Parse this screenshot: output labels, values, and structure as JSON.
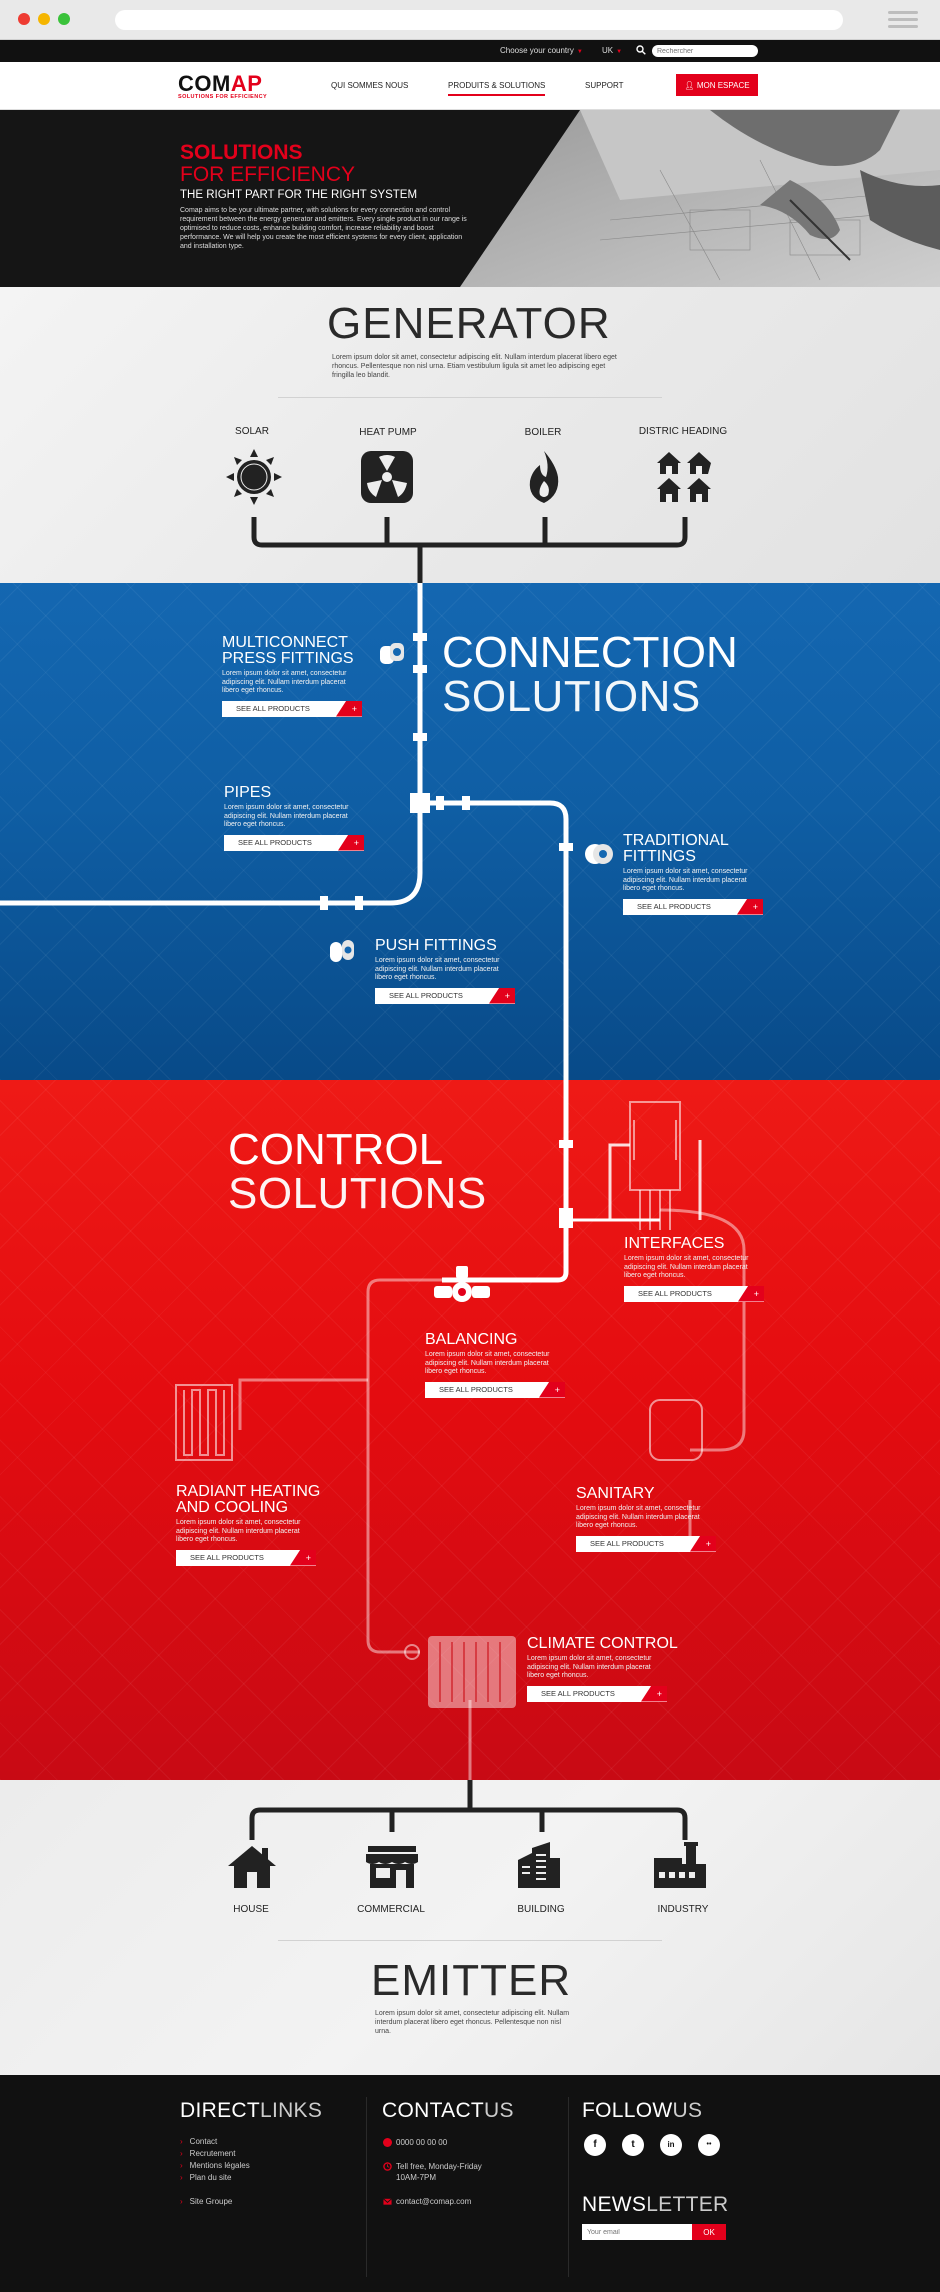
{
  "topbar": {
    "country_label": "Choose your country",
    "lang": "UK",
    "search_placeholder": "Rechercher"
  },
  "nav": {
    "logo_word_a": "COM",
    "logo_word_b": "AP",
    "logo_tagline": "SOLUTIONS FOR EFFICIENCY",
    "items": [
      "QUI SOMMES NOUS",
      "PRODUITS & SOLUTIONS",
      "SUPPORT"
    ],
    "active_item": "PRODUITS & SOLUTIONS",
    "espace_label": "MON ESPACE"
  },
  "hero": {
    "title_bold": "SOLUTIONS",
    "title_light": "FOR EFFICIENCY",
    "subtitle": "THE RIGHT PART FOR THE RIGHT SYSTEM",
    "text": "Comap aims to be your ultimate partner, with solutions for every connection and control requirement between the energy generator and emitters. Every single product in our range is optimised to reduce costs, enhance building comfort, increase reliability and boost performance. We will help you create the most efficient systems for every client, application and installation type."
  },
  "generator": {
    "title": "GENERATOR",
    "text": "Lorem ipsum dolor sit amet, consectetur adipiscing elit. Nullam interdum placerat libero eget rhoncus. Pellentesque non nisl urna. Etiam vestibulum ligula sit amet leo adipiscing eget fringilla leo blandit.",
    "items": [
      {
        "label": "SOLAR",
        "icon": "sun-icon"
      },
      {
        "label": "HEAT PUMP",
        "icon": "fan-icon"
      },
      {
        "label": "BOILER",
        "icon": "flame-icon"
      },
      {
        "label": "DISTRIC HEADING",
        "icon": "houses-icon"
      }
    ]
  },
  "connection": {
    "title_bold": "CONNECTION",
    "title_light": "SOLUTIONS",
    "products": [
      {
        "title1": "MULTICONNECT",
        "title2": "PRESS FITTINGS",
        "text": "Lorem ipsum dolor sit amet, consectetur adipiscing elit. Nullam interdum placerat libero eget rhoncus.",
        "button": "SEE ALL PRODUCTS"
      },
      {
        "title1": "PIPES",
        "title2": "",
        "text": "Lorem ipsum dolor sit amet, consectetur adipiscing elit. Nullam interdum placerat libero eget rhoncus.",
        "button": "SEE ALL PRODUCTS"
      },
      {
        "title1": "TRADITIONAL",
        "title2": "FITTINGS",
        "text": "Lorem ipsum dolor sit amet, consectetur adipiscing elit. Nullam interdum placerat libero eget rhoncus.",
        "button": "SEE ALL PRODUCTS"
      },
      {
        "title1": "PUSH FITTINGS",
        "title2": "",
        "text": "Lorem ipsum dolor sit amet, consectetur adipiscing elit. Nullam interdum placerat libero eget rhoncus.",
        "button": "SEE ALL PRODUCTS"
      }
    ]
  },
  "control": {
    "title_bold": "CONTROL",
    "title_light": "SOLUTIONS",
    "products": [
      {
        "title1": "INTERFACES",
        "title2": "",
        "text": "Lorem ipsum dolor sit amet, consectetur adipiscing elit. Nullam interdum placerat libero eget rhoncus.",
        "button": "SEE ALL PRODUCTS"
      },
      {
        "title1": "BALANCING",
        "title2": "",
        "text": "Lorem ipsum dolor sit amet, consectetur adipiscing elit. Nullam interdum placerat libero eget rhoncus.",
        "button": "SEE ALL PRODUCTS"
      },
      {
        "title1": "RADIANT HEATING",
        "title2": "AND COOLING",
        "text": "Lorem ipsum dolor sit amet, consectetur adipiscing elit. Nullam interdum placerat libero eget rhoncus.",
        "button": "SEE ALL PRODUCTS"
      },
      {
        "title1": "SANITARY",
        "title2": "",
        "text": "Lorem ipsum dolor sit amet, consectetur adipiscing elit. Nullam interdum placerat libero eget rhoncus.",
        "button": "SEE ALL PRODUCTS"
      },
      {
        "title1": "CLIMATE CONTROL",
        "title2": "",
        "text": "Lorem ipsum dolor sit amet, consectetur adipiscing elit. Nullam interdum placerat libero eget rhoncus.",
        "button": "SEE ALL PRODUCTS"
      }
    ]
  },
  "emitter": {
    "title": "EMITTER",
    "text": "Lorem ipsum dolor sit amet, consectetur adipiscing elit. Nullam interdum placerat libero eget rhoncus. Pellentesque non nisl urna.",
    "items": [
      {
        "label": "HOUSE",
        "icon": "house-icon"
      },
      {
        "label": "COMMERCIAL",
        "icon": "shop-icon"
      },
      {
        "label": "BUILDING",
        "icon": "building-icon"
      },
      {
        "label": "INDUSTRY",
        "icon": "factory-icon"
      }
    ]
  },
  "footer": {
    "direct_a": "DIRECT",
    "direct_b": "LINKS",
    "links": [
      "Contact",
      "Recrutement",
      "Mentions légales",
      "Plan du site",
      "Site Groupe"
    ],
    "contact_a": "CONTACT",
    "contact_b": "US",
    "phone": "0000 00 00 00",
    "hours1": "Tell free, Monday-Friday",
    "hours2": "10AM-7PM",
    "email": "contact@comap.com",
    "follow_a": "FOLLOW",
    "follow_b": "US",
    "social": [
      "f",
      "t",
      "in",
      "••"
    ],
    "newsletter_a": "NEWS",
    "newsletter_b": "LETTER",
    "newsletter_placeholder": "Your email",
    "newsletter_ok": "OK"
  },
  "colors": {
    "brand_red": "#e3001b",
    "connection_blue": "#1467b1",
    "dark": "#111111"
  }
}
